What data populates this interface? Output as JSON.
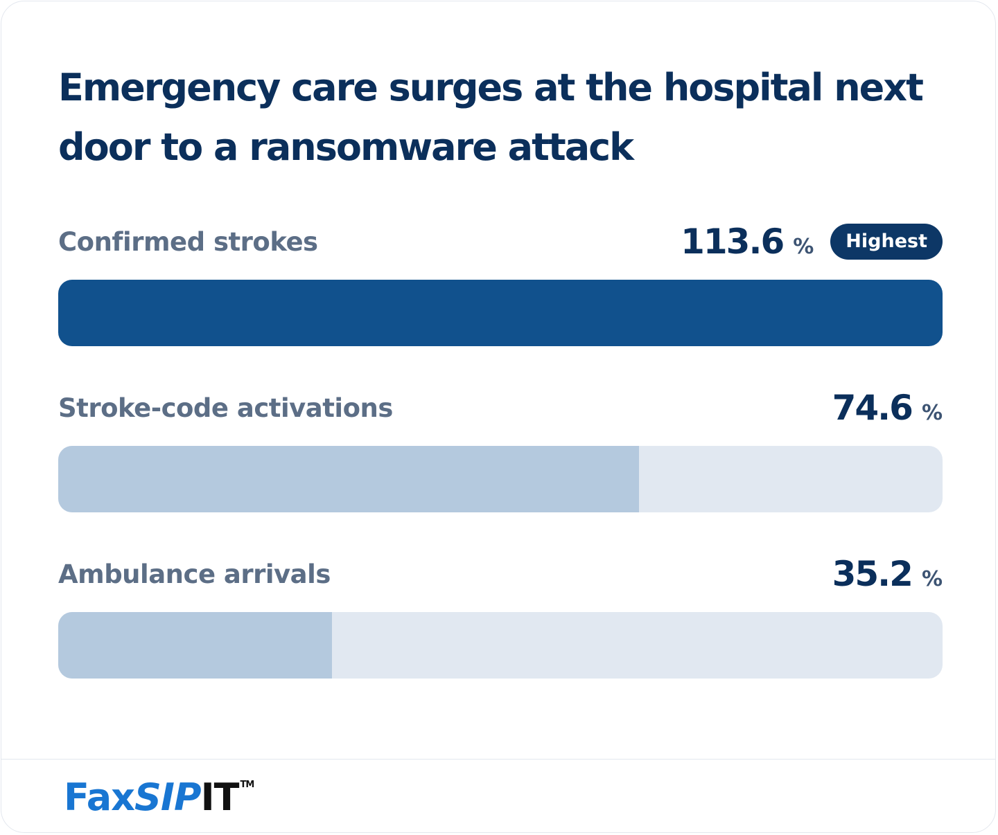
{
  "colors": {
    "title": "#0b2f5b",
    "label": "#5c6e86",
    "highest_fill": "#11518d",
    "fill": "#b4c9de",
    "track": "#e1e8f1",
    "badge": "#0d3766",
    "logo_blue": "#1976d2",
    "logo_dark": "#111111"
  },
  "chart_data": {
    "type": "bar",
    "orientation": "horizontal",
    "title": "Emergency care surges at the hospital next door to a ransomware attack",
    "categories": [
      "Confirmed strokes",
      "Stroke-code activations",
      "Ambulance arrivals"
    ],
    "values": [
      113.6,
      74.6,
      35.2
    ],
    "unit": "%",
    "highest_badge": "Highest",
    "xlim": [
      0,
      113.6
    ],
    "grid": false
  },
  "footer": {
    "logo": {
      "part1": "Fax",
      "part2": "SIP",
      "part3": "IT",
      "trademark": "TM"
    }
  }
}
